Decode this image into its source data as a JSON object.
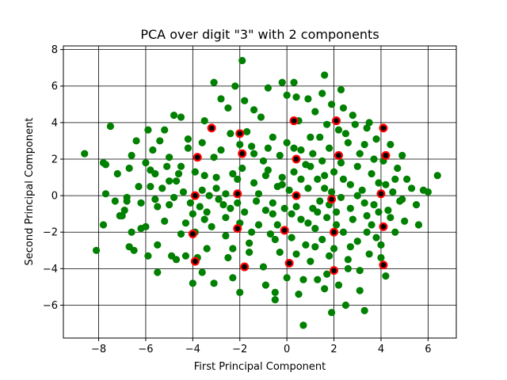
{
  "chart_data": {
    "type": "scatter",
    "title": "PCA over digit \"3\" with 2 components",
    "xlabel": "First Principal Component",
    "ylabel": "Second Principal Component",
    "xlim": [
      -9.5,
      7.2
    ],
    "ylim": [
      -7.8,
      8.2
    ],
    "xticks": [
      -8,
      -6,
      -4,
      -2,
      0,
      2,
      4,
      6
    ],
    "yticks": [
      -6,
      -4,
      -2,
      0,
      2,
      4,
      6,
      8
    ],
    "xtick_labels": [
      "−8",
      "−6",
      "−4",
      "−2",
      "0",
      "2",
      "4",
      "6"
    ],
    "ytick_labels": [
      "−6",
      "−4",
      "−2",
      "0",
      "2",
      "4",
      "6",
      "8"
    ],
    "grid": true,
    "point_color": "#008000",
    "highlight_edge_color": "#ff0000",
    "highlight_core_color": "#000000",
    "highlight_note": "",
    "series": [
      {
        "role": "samples",
        "color": "#008000",
        "points": [
          [
            -8.6,
            2.3
          ],
          [
            -8.1,
            -3.0
          ],
          [
            -7.8,
            1.8
          ],
          [
            -7.7,
            1.7
          ],
          [
            -7.7,
            0.1
          ],
          [
            -7.8,
            -1.6
          ],
          [
            -7.5,
            3.8
          ],
          [
            -7.2,
            1.2
          ],
          [
            -7.3,
            -0.3
          ],
          [
            -7.0,
            -1.1
          ],
          [
            -6.9,
            -0.8
          ],
          [
            -6.8,
            -0.1
          ],
          [
            -6.7,
            1.5
          ],
          [
            -6.6,
            2.2
          ],
          [
            -6.6,
            -2.0
          ],
          [
            -6.7,
            -2.8
          ],
          [
            -6.5,
            -3.0
          ],
          [
            -6.4,
            3.0
          ],
          [
            -6.3,
            0.5
          ],
          [
            -6.2,
            -0.4
          ],
          [
            -6.0,
            1.8
          ],
          [
            -5.9,
            3.6
          ],
          [
            -6.0,
            -1.7
          ],
          [
            -5.9,
            -3.3
          ],
          [
            -5.8,
            0.5
          ],
          [
            -5.7,
            2.5
          ],
          [
            -5.6,
            1.2
          ],
          [
            -5.5,
            -0.6
          ],
          [
            -5.5,
            -2.7
          ],
          [
            -5.4,
            3.0
          ],
          [
            -5.3,
            0.4
          ],
          [
            -5.2,
            -1.4
          ],
          [
            -5.2,
            3.6
          ],
          [
            -5.1,
            1.6
          ],
          [
            -5.0,
            2.1
          ],
          [
            -5.0,
            -0.5
          ],
          [
            -4.9,
            -3.3
          ],
          [
            -4.8,
            4.4
          ],
          [
            -4.7,
            0.8
          ],
          [
            -4.7,
            -3.5
          ],
          [
            -4.6,
            1.2
          ],
          [
            -4.5,
            4.3
          ],
          [
            -4.5,
            -2.1
          ],
          [
            -4.4,
            0.2
          ],
          [
            -4.3,
            -3.3
          ],
          [
            -4.2,
            2.6
          ],
          [
            -4.1,
            -0.4
          ],
          [
            -4.0,
            -1.0
          ],
          [
            -4.0,
            -4.8
          ],
          [
            -3.9,
            1.3
          ],
          [
            -3.8,
            -3.4
          ],
          [
            -3.7,
            -0.6
          ],
          [
            -3.6,
            0.3
          ],
          [
            -3.5,
            1.1
          ],
          [
            -3.5,
            -1.3
          ],
          [
            -3.4,
            -2.9
          ],
          [
            -3.3,
            0.0
          ],
          [
            -3.2,
            -1.7
          ],
          [
            -3.1,
            6.2
          ],
          [
            -3.1,
            2.1
          ],
          [
            -3.1,
            -4.8
          ],
          [
            -3.0,
            1.0
          ],
          [
            -2.9,
            -0.2
          ],
          [
            -2.8,
            5.3
          ],
          [
            -2.8,
            2.5
          ],
          [
            -2.7,
            -0.5
          ],
          [
            -2.6,
            -1.2
          ],
          [
            -2.5,
            -3.4
          ],
          [
            -2.4,
            3.4
          ],
          [
            -2.3,
            1.2
          ],
          [
            -2.3,
            -2.9
          ],
          [
            -2.2,
            6.0
          ],
          [
            -2.1,
            0.9
          ],
          [
            -2.1,
            -0.4
          ],
          [
            -2.0,
            2.8
          ],
          [
            -2.0,
            -1.5
          ],
          [
            -2.0,
            -5.3
          ],
          [
            -1.9,
            7.4
          ],
          [
            -1.8,
            5.2
          ],
          [
            -1.8,
            -0.9
          ],
          [
            -1.7,
            3.5
          ],
          [
            -1.6,
            -2.6
          ],
          [
            -1.5,
            2.7
          ],
          [
            -1.4,
            0.7
          ],
          [
            -1.3,
            -0.3
          ],
          [
            -1.2,
            -1.6
          ],
          [
            -1.1,
            4.3
          ],
          [
            -1.0,
            1.9
          ],
          [
            -1.0,
            -3.9
          ],
          [
            -0.9,
            -0.8
          ],
          [
            -0.8,
            5.9
          ],
          [
            -0.8,
            1.4
          ],
          [
            -0.7,
            -2.1
          ],
          [
            -0.6,
            3.2
          ],
          [
            -0.6,
            -0.4
          ],
          [
            -0.5,
            -5.3
          ],
          [
            -0.5,
            -5.7
          ],
          [
            -0.4,
            0.5
          ],
          [
            -0.4,
            -1.6
          ],
          [
            -0.3,
            2.2
          ],
          [
            -0.3,
            -3.1
          ],
          [
            -0.2,
            6.2
          ],
          [
            -0.2,
            1.0
          ],
          [
            -0.1,
            -0.7
          ],
          [
            0.0,
            5.5
          ],
          [
            0.0,
            2.9
          ],
          [
            0.0,
            -4.5
          ],
          [
            0.1,
            0.3
          ],
          [
            0.2,
            -2.3
          ],
          [
            0.3,
            6.2
          ],
          [
            0.3,
            1.3
          ],
          [
            0.4,
            -0.6
          ],
          [
            0.5,
            4.1
          ],
          [
            0.5,
            -5.4
          ],
          [
            0.6,
            2.5
          ],
          [
            0.6,
            -1.3
          ],
          [
            0.7,
            -7.1
          ],
          [
            0.8,
            1.7
          ],
          [
            0.8,
            -2.7
          ],
          [
            0.9,
            5.3
          ],
          [
            0.9,
            0.4
          ],
          [
            1.0,
            -3.6
          ],
          [
            1.1,
            2.3
          ],
          [
            1.1,
            -0.7
          ],
          [
            1.2,
            4.6
          ],
          [
            1.2,
            -1.8
          ],
          [
            1.3,
            0.9
          ],
          [
            1.3,
            -4.6
          ],
          [
            1.4,
            3.2
          ],
          [
            1.4,
            -0.3
          ],
          [
            1.5,
            1.9
          ],
          [
            1.5,
            -2.4
          ],
          [
            1.6,
            6.6
          ],
          [
            1.6,
            0.4
          ],
          [
            1.7,
            -1.2
          ],
          [
            1.7,
            -4.3
          ],
          [
            1.8,
            2.6
          ],
          [
            1.8,
            -0.5
          ],
          [
            1.9,
            5.0
          ],
          [
            1.9,
            -6.4
          ],
          [
            2.0,
            1.3
          ],
          [
            2.0,
            -2.9
          ],
          [
            2.1,
            -0.9
          ],
          [
            2.2,
            3.6
          ],
          [
            2.2,
            -4.9
          ],
          [
            2.3,
            1.8
          ],
          [
            2.3,
            -0.1
          ],
          [
            2.4,
            4.8
          ],
          [
            2.4,
            -2.0
          ],
          [
            2.5,
            -6.0
          ],
          [
            2.6,
            2.9
          ],
          [
            2.6,
            -3.5
          ],
          [
            2.7,
            0.6
          ],
          [
            2.8,
            -1.3
          ],
          [
            2.9,
            3.9
          ],
          [
            3.0,
            1.6
          ],
          [
            3.0,
            -2.5
          ],
          [
            3.1,
            -5.2
          ],
          [
            3.2,
            0.3
          ],
          [
            3.3,
            -6.3
          ],
          [
            3.3,
            2.8
          ],
          [
            3.4,
            -1.1
          ],
          [
            3.5,
            4.0
          ],
          [
            3.5,
            -3.2
          ],
          [
            3.6,
            1.2
          ],
          [
            3.7,
            -0.5
          ],
          [
            3.8,
            3.1
          ],
          [
            3.8,
            -2.3
          ],
          [
            3.9,
            0.7
          ],
          [
            4.0,
            -3.4
          ],
          [
            4.1,
            1.9
          ],
          [
            4.2,
            -4.4
          ],
          [
            4.3,
            -0.8
          ],
          [
            4.4,
            2.8
          ],
          [
            4.5,
            0.2
          ],
          [
            4.6,
            -2.0
          ],
          [
            4.7,
            1.5
          ],
          [
            4.8,
            -0.3
          ],
          [
            4.9,
            2.2
          ],
          [
            5.0,
            -1.4
          ],
          [
            5.1,
            0.9
          ],
          [
            5.3,
            0.4
          ],
          [
            5.5,
            -0.5
          ],
          [
            5.6,
            -1.6
          ],
          [
            5.8,
            0.3
          ],
          [
            6.0,
            0.2
          ],
          [
            6.4,
            1.1
          ],
          [
            -6.8,
            -0.3
          ],
          [
            -7.1,
            -1.1
          ],
          [
            -5.6,
            -0.2
          ],
          [
            -5.0,
            0.8
          ],
          [
            -4.8,
            -0.1
          ],
          [
            -4.5,
            1.6
          ],
          [
            -4.3,
            -1.5
          ],
          [
            -3.9,
            -2.0
          ],
          [
            -3.6,
            2.9
          ],
          [
            -3.4,
            -0.9
          ],
          [
            -3.0,
            0.4
          ],
          [
            -2.6,
            0.1
          ],
          [
            -2.4,
            -0.7
          ],
          [
            -1.9,
            1.5
          ],
          [
            -1.5,
            -2.0
          ],
          [
            -1.2,
            0.1
          ],
          [
            -0.9,
            1.1
          ],
          [
            -0.6,
            -1.0
          ],
          [
            -0.2,
            0.6
          ],
          [
            0.2,
            -1.0
          ],
          [
            0.6,
            0.9
          ],
          [
            0.9,
            -1.5
          ],
          [
            1.0,
            1.6
          ],
          [
            1.3,
            -0.9
          ],
          [
            1.6,
            1.1
          ],
          [
            1.9,
            0.2
          ],
          [
            2.1,
            -1.6
          ],
          [
            2.4,
            0.9
          ],
          [
            2.7,
            -0.7
          ],
          [
            3.0,
            0.0
          ],
          [
            3.3,
            -0.4
          ],
          [
            3.6,
            -1.6
          ],
          [
            3.9,
            -0.9
          ],
          [
            4.2,
            0.6
          ],
          [
            4.4,
            -1.2
          ],
          [
            4.6,
            0.9
          ],
          [
            4.9,
            -0.2
          ],
          [
            -1.4,
            2.3
          ],
          [
            -0.8,
            2.6
          ],
          [
            0.3,
            2.6
          ],
          [
            1.0,
            3.2
          ],
          [
            1.7,
            3.9
          ],
          [
            2.5,
            3.4
          ],
          [
            3.1,
            2.3
          ],
          [
            3.7,
            2.0
          ],
          [
            -2.6,
            -2.2
          ],
          [
            -1.6,
            -3.1
          ],
          [
            -0.5,
            -2.4
          ],
          [
            0.4,
            -3.2
          ],
          [
            1.2,
            -2.8
          ],
          [
            1.8,
            -3.3
          ],
          [
            2.7,
            -2.8
          ],
          [
            3.4,
            -2.0
          ],
          [
            4.0,
            -2.7
          ],
          [
            -3.5,
            4.1
          ],
          [
            -2.5,
            4.8
          ],
          [
            -1.4,
            4.7
          ],
          [
            0.4,
            5.4
          ],
          [
            1.5,
            5.6
          ],
          [
            2.3,
            5.8
          ],
          [
            2.8,
            4.4
          ],
          [
            3.4,
            3.7
          ],
          [
            -3.6,
            -4.2
          ],
          [
            -2.3,
            -4.5
          ],
          [
            -0.9,
            -4.9
          ],
          [
            0.7,
            -4.6
          ],
          [
            1.6,
            -5.1
          ],
          [
            2.6,
            -4.0
          ],
          [
            3.1,
            -4.1
          ],
          [
            -5.5,
            -4.2
          ],
          [
            -6.2,
            -1.8
          ],
          [
            -5.8,
            1.4
          ],
          [
            -4.2,
            3.1
          ]
        ]
      },
      {
        "role": "highlighted",
        "points": [
          [
            -3.2,
            3.7
          ],
          [
            -2.0,
            3.4
          ],
          [
            0.3,
            4.1
          ],
          [
            2.1,
            4.1
          ],
          [
            4.1,
            3.7
          ],
          [
            -3.8,
            2.1
          ],
          [
            -1.9,
            2.3
          ],
          [
            0.4,
            2.0
          ],
          [
            2.2,
            2.2
          ],
          [
            4.2,
            2.2
          ],
          [
            -3.9,
            0.0
          ],
          [
            -2.1,
            0.1
          ],
          [
            0.4,
            0.0
          ],
          [
            1.9,
            -0.2
          ],
          [
            4.0,
            0.1
          ],
          [
            -4.0,
            -2.1
          ],
          [
            -2.1,
            -1.8
          ],
          [
            -0.1,
            -1.9
          ],
          [
            2.0,
            -2.0
          ],
          [
            4.1,
            -1.7
          ],
          [
            -3.9,
            -3.6
          ],
          [
            -1.8,
            -3.9
          ],
          [
            0.1,
            -3.7
          ],
          [
            2.0,
            -4.1
          ],
          [
            4.1,
            -3.8
          ]
        ]
      }
    ]
  }
}
